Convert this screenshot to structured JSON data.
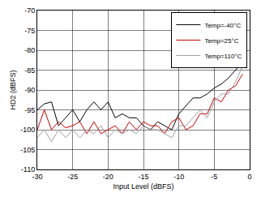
{
  "chart_data": {
    "type": "line",
    "x_label": "Input Level (dBFS)",
    "y_label": "HD2 (dBFS)",
    "x": [
      -30,
      -29,
      -28,
      -27,
      -26,
      -25,
      -24,
      -23,
      -22,
      -21,
      -20,
      -19,
      -18,
      -17,
      -16,
      -15,
      -14,
      -13,
      -12,
      -11,
      -10,
      -9,
      -8,
      -7,
      -6,
      -5,
      -4,
      -3,
      -2,
      -1
    ],
    "series": [
      {
        "name": "Temp=-40°C",
        "color": "#000000",
        "line_style": "solid",
        "values": [
          -95,
          -93.5,
          -93,
          -99,
          -97,
          -95,
          -98,
          -95,
          -93,
          -95,
          -93,
          -97,
          -96,
          -97,
          -97,
          -99,
          -100,
          -98,
          -99,
          -100,
          -96,
          -94,
          -92,
          -92,
          -91,
          -89.5,
          -88.5,
          -87,
          -85,
          -83
        ]
      },
      {
        "name": "Temp=25°C",
        "color": "#cc0000",
        "line_style": "solid",
        "values": [
          -100,
          -95,
          -100,
          -98,
          -99.5,
          -99,
          -98,
          -101,
          -98,
          -101,
          -100,
          -99,
          -101,
          -98,
          -100,
          -98,
          -99,
          -99,
          -101,
          -98,
          -97,
          -100,
          -99,
          -96,
          -96,
          -92,
          -93,
          -90,
          -89,
          -86
        ]
      },
      {
        "name": "Temp=110°C",
        "color": "#a0a0a0",
        "line_style": "solid",
        "values": [
          -102,
          -100,
          -103,
          -100,
          -102,
          -100,
          -102,
          -100,
          -101,
          -99,
          -102,
          -100,
          -101,
          -100,
          -101,
          -99,
          -100,
          -100,
          -101,
          -102,
          -99,
          -99,
          -97,
          -95,
          -97,
          -93,
          -91,
          -91,
          -88,
          -84
        ]
      }
    ],
    "xlim": [
      -30,
      0
    ],
    "xticks": [
      -30,
      -25,
      -20,
      -15,
      -10,
      -5,
      0
    ],
    "ylim": [
      -110,
      -70
    ],
    "yticks": [
      -110,
      -105,
      -100,
      -95,
      -90,
      -85,
      -80,
      -75,
      -70
    ],
    "grid": true,
    "legend": "top right"
  }
}
